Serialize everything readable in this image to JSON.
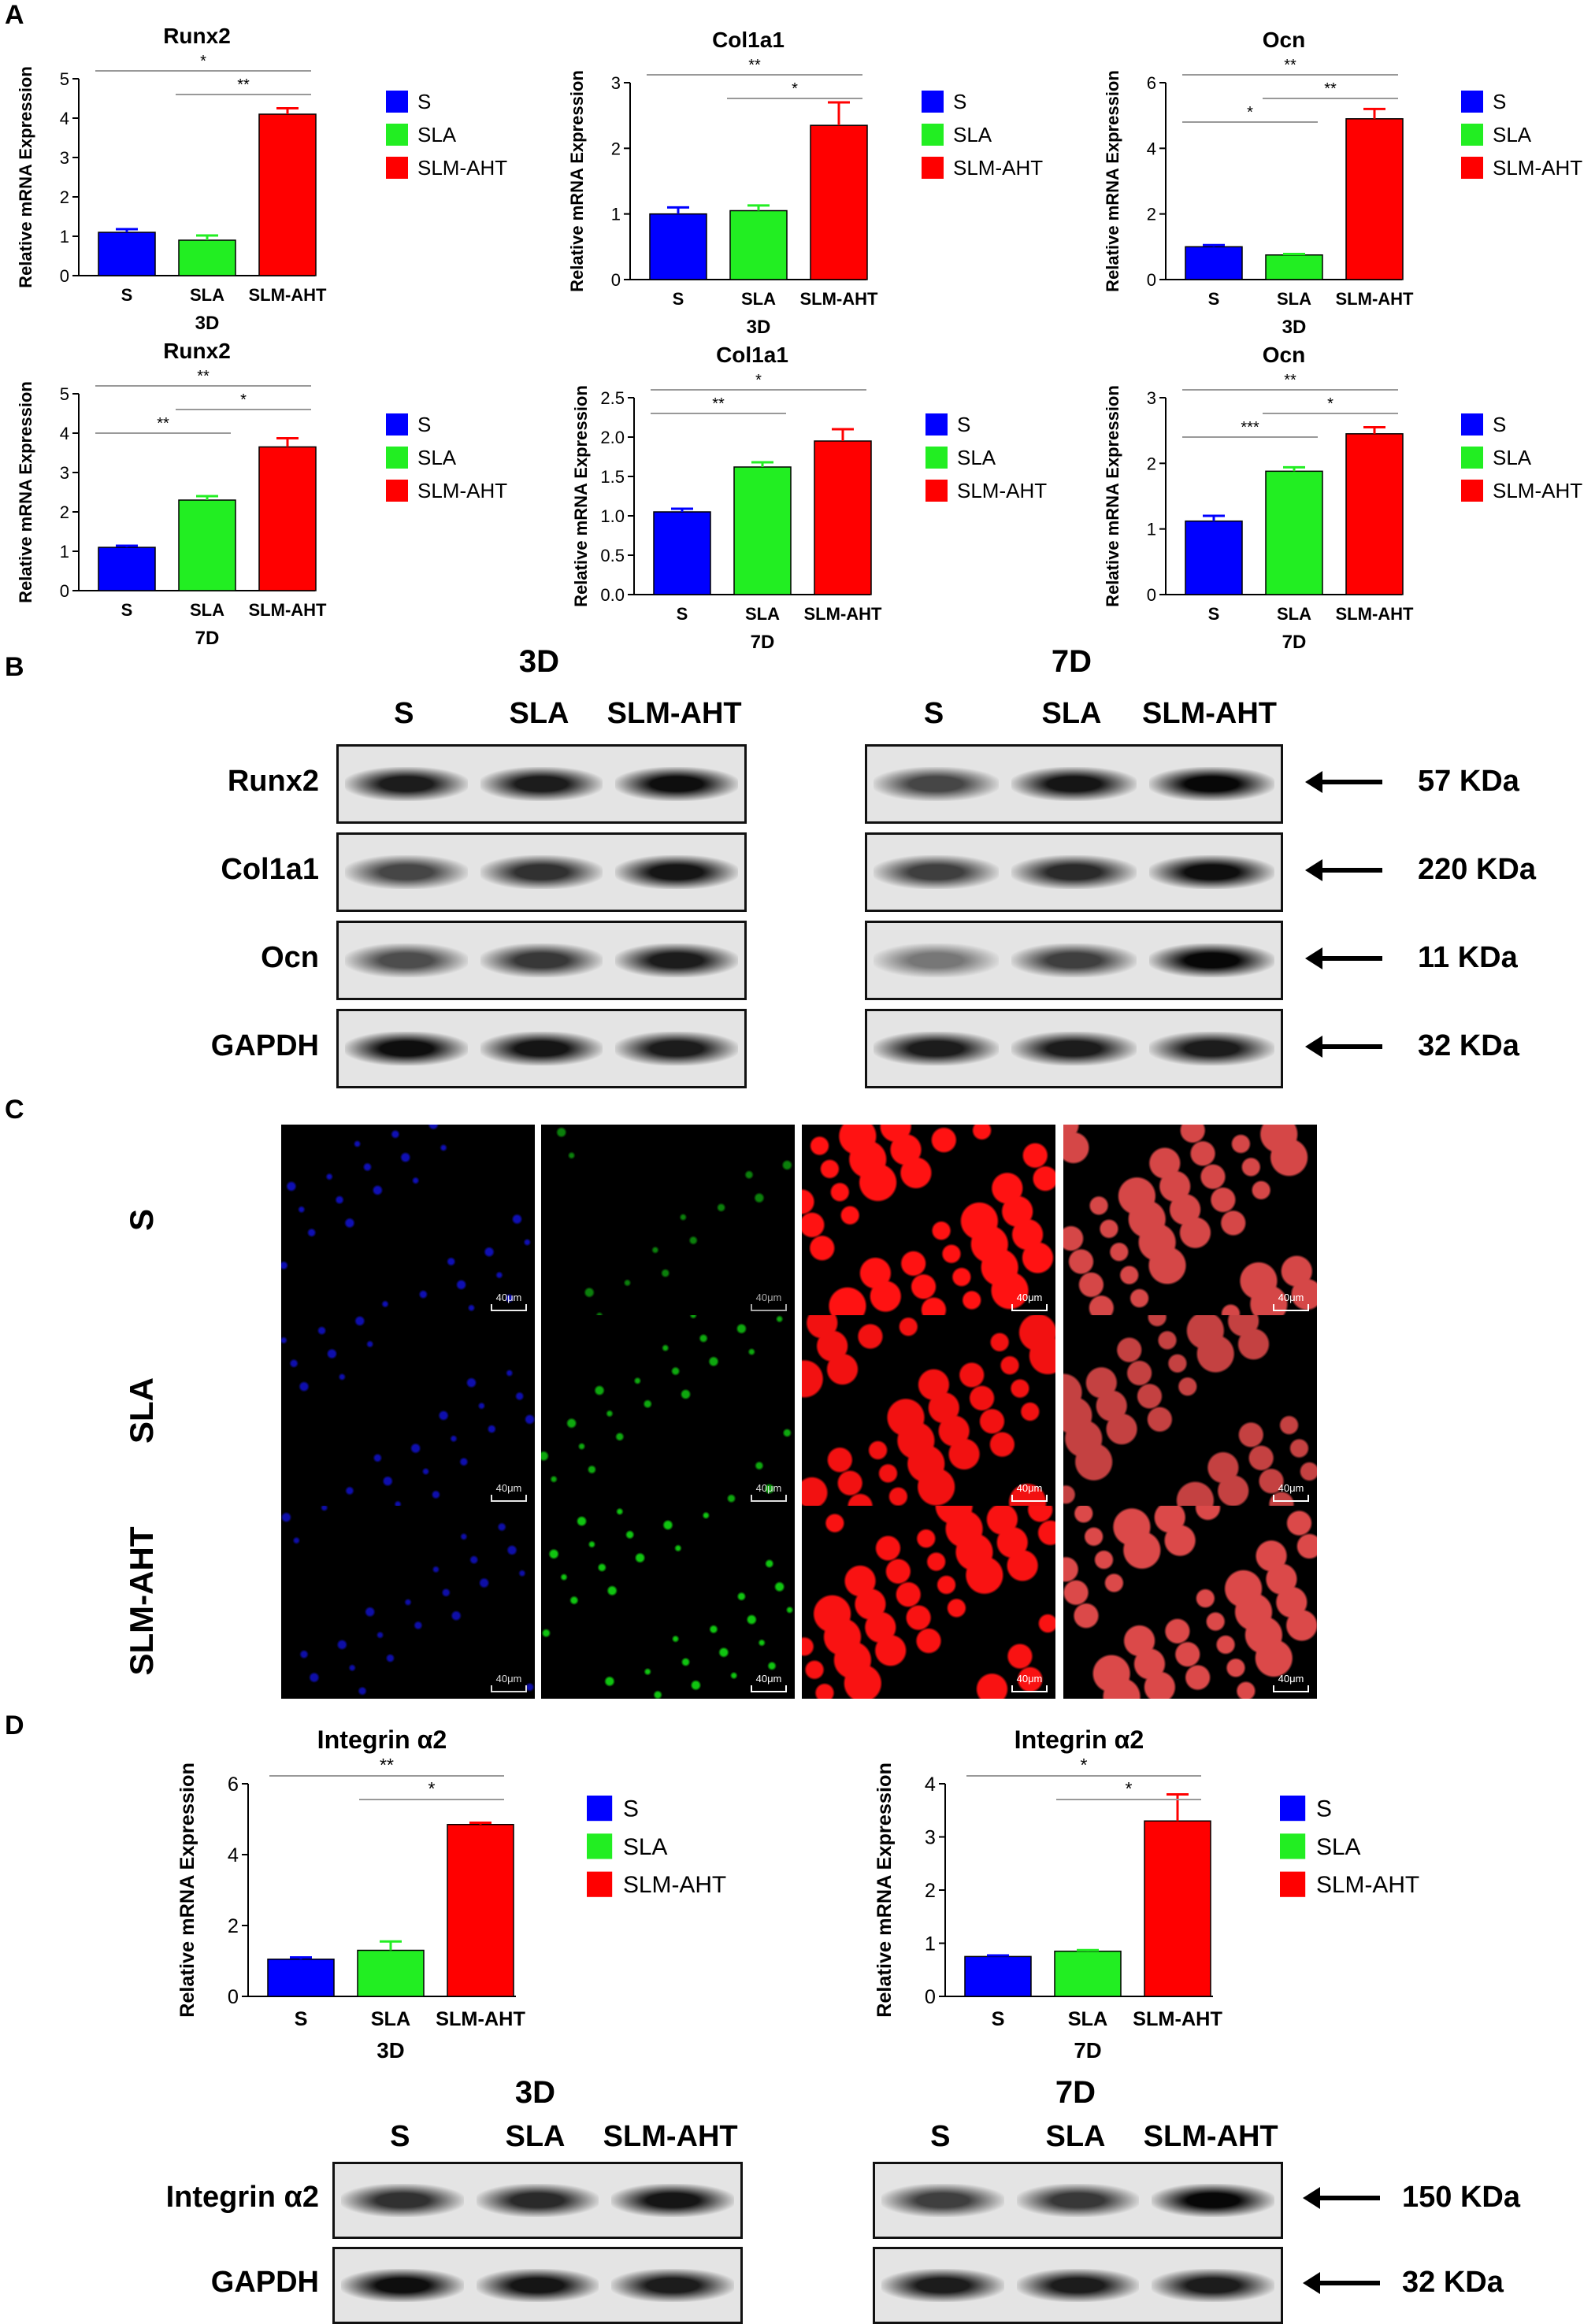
{
  "panels": [
    "A",
    "B",
    "C",
    "D"
  ],
  "legend_labels": [
    "S",
    "SLA",
    "SLM-AHT"
  ],
  "colors": {
    "S": "#0000ff",
    "SLA": "#22ee22",
    "SLM-AHT": "#ff0000"
  },
  "chart_data": [
    {
      "id": "runx2-3d",
      "type": "bar",
      "title": "Runx2",
      "ylabel": "Relative mRNA Expression",
      "xlabel": "3D",
      "categories": [
        "S",
        "SLA",
        "SLM-AHT"
      ],
      "values": [
        1.1,
        0.9,
        4.1
      ],
      "errors": [
        0.08,
        0.12,
        0.15
      ],
      "ylim": [
        0,
        5
      ],
      "yticks": [
        "0",
        "1",
        "2",
        "3",
        "4",
        "5"
      ],
      "significance": [
        {
          "from": 0,
          "to": 2,
          "label": "*"
        },
        {
          "from": 1,
          "to": 2,
          "label": "**"
        }
      ]
    },
    {
      "id": "col1a1-3d",
      "type": "bar",
      "title": "Col1a1",
      "ylabel": "Relative mRNA Expression",
      "xlabel": "3D",
      "categories": [
        "S",
        "SLA",
        "SLM-AHT"
      ],
      "values": [
        1.0,
        1.05,
        2.35
      ],
      "errors": [
        0.1,
        0.08,
        0.35
      ],
      "ylim": [
        0,
        3
      ],
      "yticks": [
        "0",
        "1",
        "2",
        "3"
      ],
      "significance": [
        {
          "from": 0,
          "to": 2,
          "label": "**"
        },
        {
          "from": 1,
          "to": 2,
          "label": "*"
        }
      ]
    },
    {
      "id": "ocn-3d",
      "type": "bar",
      "title": "Ocn",
      "ylabel": "Relative mRNA Expression",
      "xlabel": "3D",
      "categories": [
        "S",
        "SLA",
        "SLM-AHT"
      ],
      "values": [
        1.0,
        0.75,
        4.9
      ],
      "errors": [
        0.05,
        0.03,
        0.3
      ],
      "ylim": [
        0,
        6
      ],
      "yticks": [
        "0",
        "2",
        "4",
        "6"
      ],
      "significance": [
        {
          "from": 0,
          "to": 2,
          "label": "**"
        },
        {
          "from": 1,
          "to": 2,
          "label": "**"
        },
        {
          "from": 0,
          "to": 1,
          "label": "*"
        }
      ]
    },
    {
      "id": "runx2-7d",
      "type": "bar",
      "title": "Runx2",
      "ylabel": "Relative mRNA Expression",
      "xlabel": "7D",
      "categories": [
        "S",
        "SLA",
        "SLM-AHT"
      ],
      "values": [
        1.1,
        2.3,
        3.65
      ],
      "errors": [
        0.04,
        0.1,
        0.22
      ],
      "ylim": [
        0,
        5
      ],
      "yticks": [
        "0",
        "1",
        "2",
        "3",
        "4",
        "5"
      ],
      "significance": [
        {
          "from": 0,
          "to": 2,
          "label": "**"
        },
        {
          "from": 1,
          "to": 2,
          "label": "*"
        },
        {
          "from": 0,
          "to": 1,
          "label": "**"
        }
      ]
    },
    {
      "id": "col1a1-7d",
      "type": "bar",
      "title": "Col1a1",
      "ylabel": "Relative mRNA Expression",
      "xlabel": "7D",
      "categories": [
        "S",
        "SLA",
        "SLM-AHT"
      ],
      "values": [
        1.05,
        1.62,
        1.95
      ],
      "errors": [
        0.04,
        0.06,
        0.15
      ],
      "ylim": [
        0,
        2.5
      ],
      "yticks": [
        "0.0",
        "0.5",
        "1.0",
        "1.5",
        "2.0",
        "2.5"
      ],
      "significance": [
        {
          "from": 0,
          "to": 2,
          "label": "*"
        },
        {
          "from": 0,
          "to": 1,
          "label": "**"
        }
      ]
    },
    {
      "id": "ocn-7d",
      "type": "bar",
      "title": "Ocn",
      "ylabel": "Relative mRNA Expression",
      "xlabel": "7D",
      "categories": [
        "S",
        "SLA",
        "SLM-AHT"
      ],
      "values": [
        1.12,
        1.88,
        2.45
      ],
      "errors": [
        0.08,
        0.06,
        0.1
      ],
      "ylim": [
        0,
        3
      ],
      "yticks": [
        "0",
        "1",
        "2",
        "3"
      ],
      "significance": [
        {
          "from": 0,
          "to": 2,
          "label": "**"
        },
        {
          "from": 1,
          "to": 2,
          "label": "*"
        },
        {
          "from": 0,
          "to": 1,
          "label": "***"
        }
      ]
    },
    {
      "id": "itga2-3d",
      "type": "bar",
      "title": "Integrin α2",
      "ylabel": "Relative mRNA Expression",
      "xlabel": "3D",
      "categories": [
        "S",
        "SLA",
        "SLM-AHT"
      ],
      "values": [
        1.05,
        1.3,
        4.85
      ],
      "errors": [
        0.05,
        0.25,
        0.05
      ],
      "ylim": [
        0,
        6
      ],
      "yticks": [
        "0",
        "2",
        "4",
        "6"
      ],
      "significance": [
        {
          "from": 0,
          "to": 2,
          "label": "**"
        },
        {
          "from": 1,
          "to": 2,
          "label": "*"
        }
      ]
    },
    {
      "id": "itga2-7d",
      "type": "bar",
      "title": "Integrin α2",
      "ylabel": "Relative mRNA Expression",
      "xlabel": "7D",
      "categories": [
        "S",
        "SLA",
        "SLM-AHT"
      ],
      "values": [
        0.75,
        0.85,
        3.3
      ],
      "errors": [
        0.02,
        0.02,
        0.5
      ],
      "ylim": [
        0,
        4
      ],
      "yticks": [
        "0",
        "1",
        "2",
        "3",
        "4"
      ],
      "significance": [
        {
          "from": 0,
          "to": 2,
          "label": "*"
        },
        {
          "from": 1,
          "to": 2,
          "label": "*"
        }
      ]
    }
  ],
  "blots_b": {
    "title_3d": "3D",
    "title_7d": "7D",
    "lanes_3d": [
      "S",
      "SLA",
      "SLM-AHT"
    ],
    "lanes_7d": [
      "S",
      "SLA",
      "SLM-AHT"
    ],
    "rows": [
      {
        "label": "Runx2",
        "kda": "57 KDa",
        "intensity_3d": [
          0.8,
          0.8,
          0.9
        ],
        "intensity_7d": [
          0.5,
          0.85,
          0.95
        ]
      },
      {
        "label": "Col1a1",
        "kda": "220 KDa",
        "intensity_3d": [
          0.5,
          0.65,
          0.85
        ],
        "intensity_7d": [
          0.55,
          0.7,
          0.9
        ]
      },
      {
        "label": "Ocn",
        "kda": "11 KDa",
        "intensity_3d": [
          0.45,
          0.6,
          0.8
        ],
        "intensity_7d": [
          0.15,
          0.55,
          0.95
        ]
      },
      {
        "label": "GAPDH",
        "kda": "32 KDa",
        "intensity_3d": [
          0.9,
          0.85,
          0.8
        ],
        "intensity_7d": [
          0.8,
          0.8,
          0.8
        ]
      }
    ]
  },
  "if_c": {
    "rows": [
      "S",
      "SLA",
      "SLM-AHT"
    ],
    "scale_label": "40μm",
    "channel_colors": [
      "#1010c0",
      "#10c010",
      "#e01010",
      "#c04040"
    ],
    "intensity": [
      [
        0.55,
        0.1,
        0.9,
        0.85
      ],
      [
        0.5,
        0.45,
        0.8,
        0.7
      ],
      [
        0.45,
        0.7,
        0.85,
        0.9
      ]
    ]
  },
  "blots_d": {
    "title_3d": "3D",
    "title_7d": "7D",
    "lanes_3d": [
      "S",
      "SLA",
      "SLM-AHT"
    ],
    "lanes_7d": [
      "S",
      "SLA",
      "SLM-AHT"
    ],
    "rows": [
      {
        "label": "Integrin α2",
        "kda": "150 KDa",
        "intensity_3d": [
          0.65,
          0.7,
          0.85
        ],
        "intensity_7d": [
          0.55,
          0.6,
          0.95
        ]
      },
      {
        "label": "GAPDH",
        "kda": "32 KDa",
        "intensity_3d": [
          0.9,
          0.85,
          0.8
        ],
        "intensity_7d": [
          0.8,
          0.8,
          0.8
        ]
      }
    ]
  }
}
